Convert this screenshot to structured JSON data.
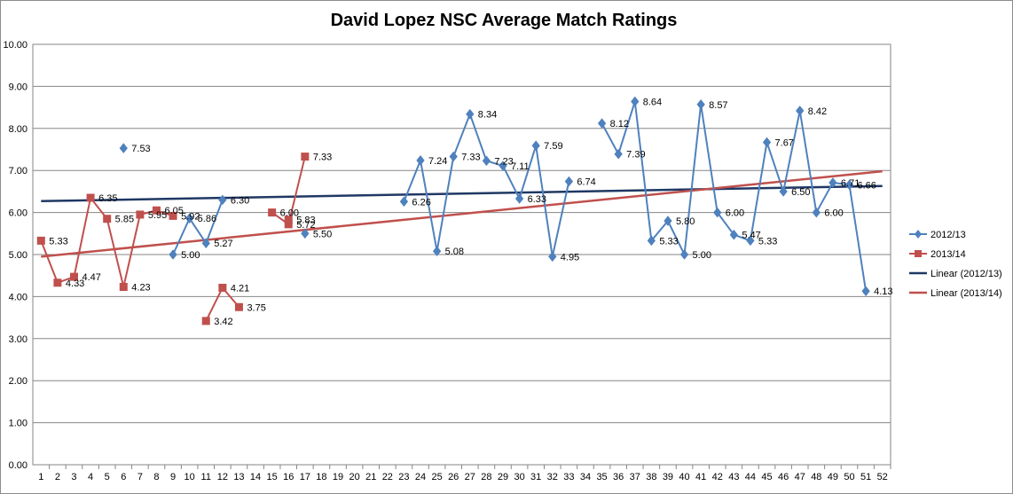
{
  "chart_data": {
    "type": "line",
    "title": "David Lopez NSC Average Match Ratings",
    "xlabel": "",
    "ylabel": "",
    "x": [
      1,
      2,
      3,
      4,
      5,
      6,
      7,
      8,
      9,
      10,
      11,
      12,
      13,
      14,
      15,
      16,
      17,
      18,
      19,
      20,
      21,
      22,
      23,
      24,
      25,
      26,
      27,
      28,
      29,
      30,
      31,
      32,
      33,
      34,
      35,
      36,
      37,
      38,
      39,
      40,
      41,
      42,
      43,
      44,
      45,
      46,
      47,
      48,
      49,
      50,
      51,
      52
    ],
    "ylim": [
      0,
      10
    ],
    "yticks": [
      "0.00",
      "1.00",
      "2.00",
      "3.00",
      "4.00",
      "5.00",
      "6.00",
      "7.00",
      "8.00",
      "9.00",
      "10.00"
    ],
    "grid": true,
    "legend_position": "right",
    "series": [
      {
        "name": "2012/13",
        "color": "#4f81bd",
        "marker": "diamond",
        "values": [
          null,
          null,
          null,
          null,
          null,
          7.53,
          null,
          null,
          5.0,
          5.86,
          5.27,
          6.3,
          null,
          null,
          null,
          null,
          5.5,
          null,
          null,
          null,
          null,
          null,
          6.26,
          7.24,
          5.08,
          7.33,
          8.34,
          7.23,
          7.11,
          6.33,
          7.59,
          4.95,
          6.74,
          null,
          8.12,
          7.39,
          8.64,
          5.33,
          5.8,
          5.0,
          8.57,
          6.0,
          5.47,
          5.33,
          7.67,
          6.5,
          8.42,
          6.0,
          6.71,
          6.66,
          4.13,
          null
        ],
        "labels": [
          null,
          null,
          null,
          null,
          null,
          "7.53",
          null,
          null,
          "5.00",
          "5.86",
          "5.27",
          "6.30",
          null,
          null,
          null,
          null,
          "5.50",
          null,
          null,
          null,
          null,
          null,
          "6.26",
          "7.24",
          "5.08",
          "7.33",
          "8.34",
          "7.23",
          "7.11",
          "6.33",
          "7.59",
          "4.95",
          "6.74",
          null,
          "8.12",
          "7.39",
          "8.64",
          "5.33",
          "5.80",
          "5.00",
          "8.57",
          "6.00",
          "5.47",
          "5.33",
          "7.67",
          "6.50",
          "8.42",
          "6.00",
          "6.71",
          "6.66",
          "4.13",
          null
        ]
      },
      {
        "name": "2013/14",
        "color": "#c0504d",
        "marker": "square",
        "values": [
          5.33,
          4.33,
          4.47,
          6.35,
          5.85,
          4.23,
          5.95,
          6.05,
          5.92,
          null,
          3.42,
          4.21,
          3.75,
          null,
          6.0,
          5.72,
          7.33,
          null,
          null,
          null,
          null,
          null,
          null,
          null,
          null,
          null,
          null,
          null,
          null,
          null,
          null,
          null,
          null,
          null,
          null,
          null,
          null,
          null,
          null,
          null,
          null,
          null,
          null,
          null,
          null,
          null,
          null,
          null,
          null,
          null,
          null,
          null
        ],
        "extra_points": [
          {
            "x": 16,
            "y": 5.83
          }
        ],
        "labels": [
          "5.33",
          "4.33",
          "4.47",
          "6.35",
          "5.85",
          "4.23",
          "5.95",
          "6.05",
          "5.92",
          null,
          "3.42",
          "4.21",
          "3.75",
          null,
          "6.00",
          "5.72",
          "7.33",
          null,
          null,
          null,
          null,
          null,
          null,
          null,
          null,
          null,
          null,
          null,
          null,
          null,
          null,
          null,
          null,
          null,
          null,
          null,
          null,
          null,
          null,
          null,
          null,
          null,
          null,
          null,
          null,
          null,
          null,
          null,
          null,
          null,
          null,
          null
        ],
        "extra_labels": [
          "5.83"
        ]
      }
    ],
    "trendlines": [
      {
        "name": "Linear (2012/13)",
        "color": "#1f3864",
        "start": [
          1,
          6.27
        ],
        "end": [
          52,
          6.63
        ]
      },
      {
        "name": "Linear (2013/14)",
        "color": "#c0504d",
        "start": [
          1,
          4.95
        ],
        "end": [
          52,
          6.98
        ]
      }
    ]
  }
}
